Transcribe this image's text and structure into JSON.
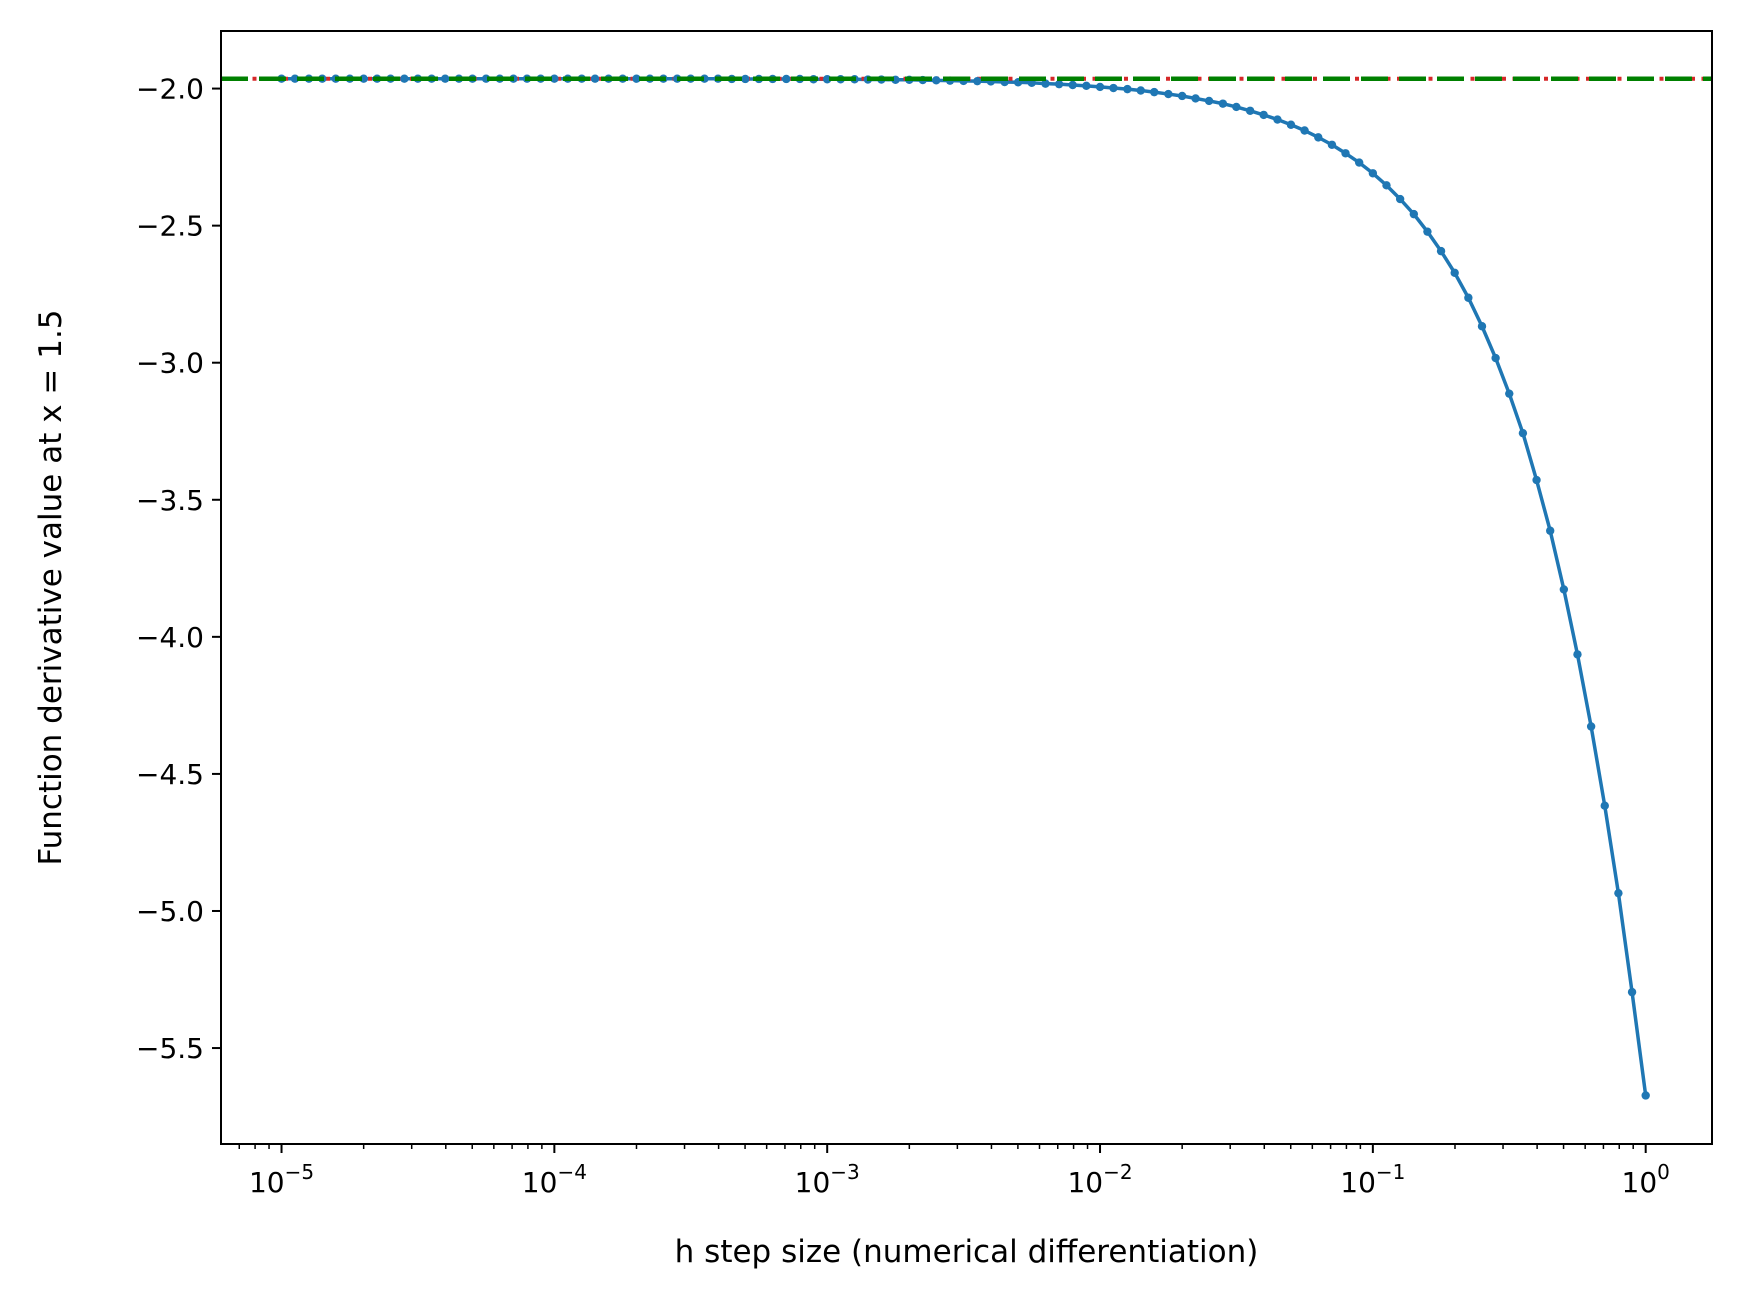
{
  "chart_data": {
    "type": "line",
    "xlabel": "h step size (numerical differentiation)",
    "ylabel": "Function derivative value at x = 1.5",
    "x_scale": "log",
    "xlim": [
      6e-06,
      1.75
    ],
    "ylim": [
      -5.85,
      -1.79
    ],
    "x_ticks": [
      {
        "value": 1e-05,
        "base": "10",
        "exp": "−5"
      },
      {
        "value": 0.0001,
        "base": "10",
        "exp": "−4"
      },
      {
        "value": 0.001,
        "base": "10",
        "exp": "−3"
      },
      {
        "value": 0.01,
        "base": "10",
        "exp": "−2"
      },
      {
        "value": 0.1,
        "base": "10",
        "exp": "−1"
      },
      {
        "value": 1,
        "base": "10",
        "exp": "0"
      }
    ],
    "y_ticks": [
      {
        "value": -2.0,
        "label": "−2.0"
      },
      {
        "value": -2.5,
        "label": "−2.5"
      },
      {
        "value": -3.0,
        "label": "−3.0"
      },
      {
        "value": -3.5,
        "label": "−3.5"
      },
      {
        "value": -4.0,
        "label": "−4.0"
      },
      {
        "value": -4.5,
        "label": "−4.5"
      },
      {
        "value": -5.0,
        "label": "−5.0"
      },
      {
        "value": -5.5,
        "label": "−5.5"
      }
    ],
    "grid": false,
    "legend": "none",
    "series": [
      {
        "style": "solid line with point markers",
        "color": "#1f77b4",
        "x": [
          1.0,
          0.8913,
          0.7943,
          0.7079,
          0.631,
          0.5623,
          0.5012,
          0.4467,
          0.3981,
          0.3548,
          0.3162,
          0.2818,
          0.2512,
          0.2239,
          0.1995,
          0.1778,
          0.1585,
          0.1413,
          0.1259,
          0.1122,
          0.1,
          0.0891,
          0.0794,
          0.0708,
          0.0631,
          0.0562,
          0.0501,
          0.0447,
          0.0398,
          0.0355,
          0.0316,
          0.0282,
          0.0251,
          0.0224,
          0.02,
          0.0178,
          0.0158,
          0.0141,
          0.0126,
          0.0112,
          0.01,
          0.00891,
          0.00794,
          0.00708,
          0.00631,
          0.00562,
          0.00501,
          0.00447,
          0.00398,
          0.00355,
          0.00316,
          0.00282,
          0.00251,
          0.00224,
          0.002,
          0.00178,
          0.00158,
          0.00141,
          0.00126,
          0.00112,
          0.001,
          0.000891,
          0.000794,
          0.000708,
          0.000631,
          0.000562,
          0.000501,
          0.000447,
          0.000398,
          0.000355,
          0.000316,
          0.000282,
          0.000251,
          0.000224,
          0.0002,
          0.000178,
          0.000158,
          0.000141,
          0.000126,
          0.000112,
          0.0001,
          8.91e-05,
          7.94e-05,
          7.08e-05,
          6.31e-05,
          5.62e-05,
          5.01e-05,
          4.47e-05,
          3.98e-05,
          3.55e-05,
          3.16e-05,
          2.82e-05,
          2.51e-05,
          2.24e-05,
          2e-05,
          1.78e-05,
          1.58e-05,
          1.41e-05,
          1.26e-05,
          1.12e-05,
          1e-05
        ],
        "y": [
          -5.673,
          -5.296,
          -4.935,
          -4.616,
          -4.327,
          -4.064,
          -3.827,
          -3.613,
          -3.428,
          -3.257,
          -3.113,
          -2.983,
          -2.867,
          -2.763,
          -2.672,
          -2.593,
          -2.522,
          -2.458,
          -2.403,
          -2.353,
          -2.309,
          -2.27,
          -2.236,
          -2.205,
          -2.178,
          -2.153,
          -2.132,
          -2.113,
          -2.096,
          -2.081,
          -2.067,
          -2.055,
          -2.045,
          -2.036,
          -2.027,
          -2.02,
          -2.013,
          -2.007,
          -2.002,
          -1.998,
          -1.994,
          -1.99,
          -1.987,
          -1.984,
          -1.982,
          -1.979,
          -1.977,
          -1.976,
          -1.974,
          -1.973,
          -1.972,
          -1.971,
          -1.97,
          -1.969,
          -1.968,
          -1.968,
          -1.967,
          -1.967,
          -1.966,
          -1.966,
          -1.966,
          -1.966,
          -1.965,
          -1.965,
          -1.965,
          -1.965,
          -1.965,
          -1.965,
          -1.964,
          -1.964,
          -1.964,
          -1.964,
          -1.964,
          -1.964,
          -1.964,
          -1.964,
          -1.964,
          -1.964,
          -1.964,
          -1.964,
          -1.964,
          -1.964,
          -1.964,
          -1.964,
          -1.964,
          -1.964,
          -1.964,
          -1.964,
          -1.964,
          -1.964,
          -1.964,
          -1.964,
          -1.964,
          -1.964,
          -1.964,
          -1.964,
          -1.964,
          -1.964,
          -1.964,
          -1.964,
          -1.964
        ]
      },
      {
        "style": "dotted horizontal line",
        "color": "#d62728",
        "y": -1.964
      },
      {
        "style": "dashed horizontal line",
        "color": "#008000",
        "y": -1.964
      }
    ]
  }
}
